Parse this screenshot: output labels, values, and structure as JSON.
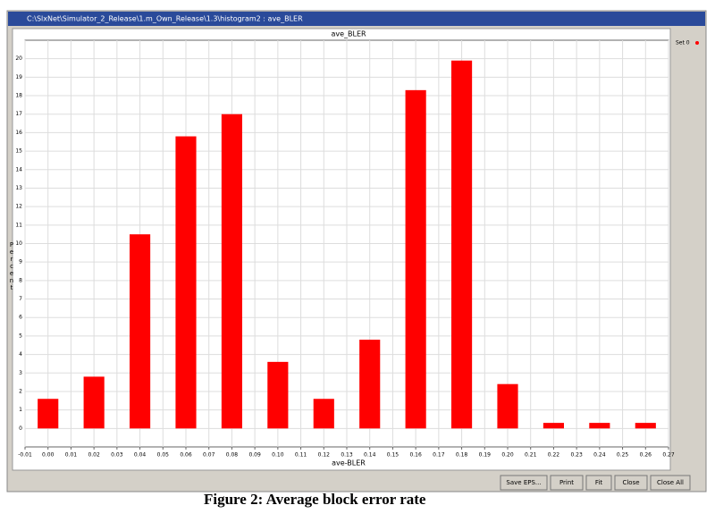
{
  "window": {
    "title": "C:\\SlxNet\\Simulator_2_Release\\1.m_Own_Release\\1.3\\histogram2 : ave_BLER",
    "buttons": [
      "Save EPS...",
      "Print",
      "Fit",
      "Close",
      "Close All"
    ]
  },
  "caption": "Figure 2: Average block error rate",
  "chart_data": {
    "type": "bar",
    "title": "ave_BLER",
    "xlabel": "ave-BLER",
    "ylabel": "Percent",
    "x": [
      0,
      0.02,
      0.04,
      0.06,
      0.08,
      0.1,
      0.12,
      0.14,
      0.16,
      0.18,
      0.2,
      0.22,
      0.24,
      0.26
    ],
    "series": [
      {
        "name": "Set 0",
        "color": "#ff0000",
        "values": [
          1.6,
          2.8,
          10.5,
          15.8,
          17.0,
          3.6,
          1.6,
          4.8,
          18.3,
          19.9,
          2.4,
          0.3,
          0.3,
          0.3
        ]
      }
    ],
    "bar_width": 0.009,
    "xlim": [
      -0.01,
      0.27
    ],
    "xticks": [
      {
        "value": -0.01,
        "label": "-0.01"
      },
      {
        "value": 0,
        "label": "0.00"
      },
      {
        "value": 0.01,
        "label": "0.01"
      },
      {
        "value": 0.02,
        "label": "0.02"
      },
      {
        "value": 0.03,
        "label": "0.03"
      },
      {
        "value": 0.04,
        "label": "0.04"
      },
      {
        "value": 0.05,
        "label": "0.05"
      },
      {
        "value": 0.06,
        "label": "0.06"
      },
      {
        "value": 0.07,
        "label": "0.07"
      },
      {
        "value": 0.08,
        "label": "0.08"
      },
      {
        "value": 0.09,
        "label": "0.09"
      },
      {
        "value": 0.1,
        "label": "0.10"
      },
      {
        "value": 0.11,
        "label": "0.11"
      },
      {
        "value": 0.12,
        "label": "0.12"
      },
      {
        "value": 0.13,
        "label": "0.13"
      },
      {
        "value": 0.14,
        "label": "0.14"
      },
      {
        "value": 0.15,
        "label": "0.15"
      },
      {
        "value": 0.16,
        "label": "0.16"
      },
      {
        "value": 0.17,
        "label": "0.17"
      },
      {
        "value": 0.18,
        "label": "0.18"
      },
      {
        "value": 0.19,
        "label": "0.19"
      },
      {
        "value": 0.2,
        "label": "0.20"
      },
      {
        "value": 0.21,
        "label": "0.21"
      },
      {
        "value": 0.22,
        "label": "0.22"
      },
      {
        "value": 0.23,
        "label": "0.23"
      },
      {
        "value": 0.24,
        "label": "0.24"
      },
      {
        "value": 0.25,
        "label": "0.25"
      },
      {
        "value": 0.26,
        "label": "0.26"
      },
      {
        "value": 0.27,
        "label": "0.27"
      }
    ],
    "ylim": [
      -1,
      21
    ],
    "yticks": [
      0,
      1,
      2,
      3,
      4,
      5,
      6,
      7,
      8,
      9,
      10,
      11,
      12,
      13,
      14,
      15,
      16,
      17,
      18,
      19,
      20
    ],
    "grid": true,
    "legend": "right"
  }
}
